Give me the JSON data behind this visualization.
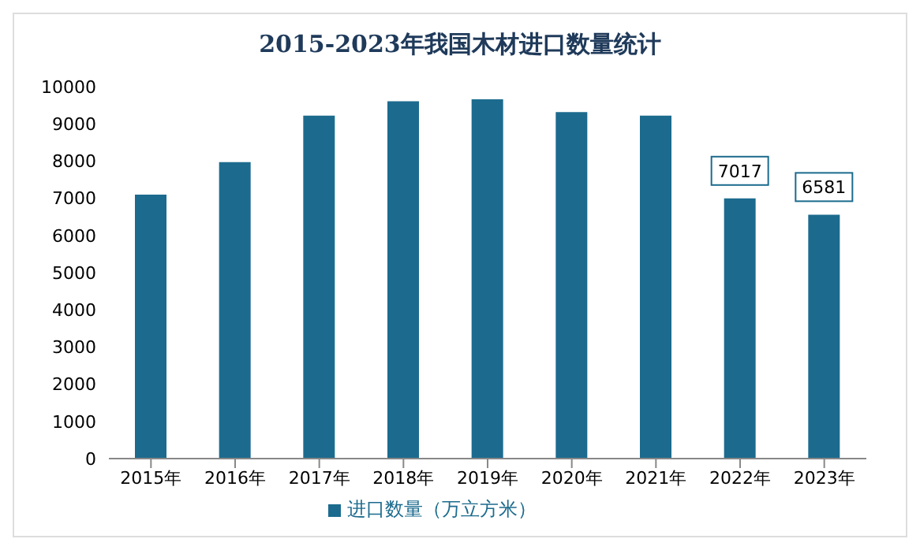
{
  "chart_data": {
    "type": "bar",
    "title": "2015-2023年我国木材进口数量统计",
    "categories": [
      "2015年",
      "2016年",
      "2017年",
      "2018年",
      "2019年",
      "2020年",
      "2021年",
      "2022年",
      "2023年"
    ],
    "series": [
      {
        "name": "进口数量（万立方米）",
        "color": "#1c6b8e",
        "values": [
          7120,
          7990,
          9240,
          9630,
          9680,
          9340,
          9240,
          7017,
          6581
        ],
        "value_labels": [
          null,
          null,
          null,
          null,
          null,
          null,
          null,
          "7017",
          "6581"
        ]
      }
    ],
    "ylim": [
      0,
      10000
    ],
    "yticks": [
      0,
      1000,
      2000,
      3000,
      4000,
      5000,
      6000,
      7000,
      8000,
      9000,
      10000
    ],
    "grid": false,
    "legend": "bottom"
  }
}
